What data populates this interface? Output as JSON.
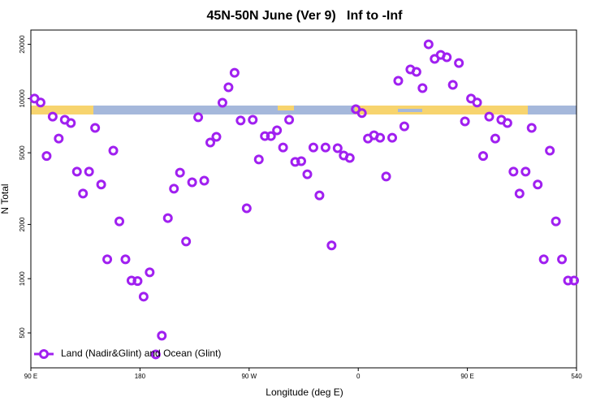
{
  "chart_data": {
    "type": "scatter",
    "title": "45N-50N June (Ver 9)   Inf to -Inf",
    "xlabel": "Longitude (deg E)",
    "ylabel": "N Total",
    "x": [
      93,
      98,
      103,
      108,
      113,
      118,
      123,
      128,
      133,
      138,
      143,
      148,
      153,
      158,
      163,
      168,
      173,
      178,
      183,
      188,
      193,
      198,
      203,
      208,
      213,
      218,
      223,
      228,
      233,
      238,
      243,
      248,
      253,
      258,
      263,
      268,
      273,
      278,
      283,
      288,
      293,
      298,
      303,
      308,
      313,
      318,
      323,
      328,
      333,
      338,
      343,
      348,
      353,
      358,
      363,
      368,
      373,
      378,
      383,
      388,
      393,
      398,
      403,
      408,
      413,
      418,
      423,
      428,
      433,
      438,
      443,
      448,
      453,
      458,
      463,
      468,
      473,
      478,
      483,
      488,
      493,
      498,
      503,
      508,
      513,
      518,
      523,
      528,
      533,
      538
    ],
    "series": [
      {
        "name": "Land (Nadir&Glint) and Ocean (Glint)",
        "color": "#a020f0",
        "values": [
          10000,
          9500,
          4800,
          7940,
          6000,
          7620,
          7310,
          3930,
          2970,
          3930,
          6870,
          3330,
          1280,
          5140,
          2080,
          1280,
          977,
          970,
          795,
          1085,
          380,
          483,
          2170,
          3160,
          3880,
          1610,
          3430,
          7870,
          3500,
          5700,
          6130,
          9480,
          11540,
          13900,
          7550,
          2460,
          7620,
          4590,
          6190,
          6190,
          6660,
          5350,
          7620,
          4450,
          4490,
          3800,
          5350,
          2900,
          5350,
          1530,
          5300,
          4830,
          4680,
          8730,
          8300,
          6000,
          6250,
          6060,
          3690,
          6060,
          12540,
          7010,
          14500,
          14060,
          11430,
          20000,
          16600,
          17470,
          16950,
          11910,
          15740,
          7470,
          10000,
          9500,
          4800,
          7940,
          6000,
          7620,
          7310,
          3930,
          2970,
          3930,
          6870,
          3330,
          1280,
          5140,
          2080,
          1280,
          977,
          977
        ]
      }
    ],
    "xlim": [
      90,
      540
    ],
    "xticks": [
      {
        "value": 90,
        "label": "90 E"
      },
      180,
      {
        "value": 270,
        "label": "90 W"
      },
      {
        "value": 360,
        "label": "0"
      },
      {
        "value": 450,
        "label": "90 E"
      },
      540
    ],
    "ylim": [
      320,
      24000
    ],
    "yticks": [
      500,
      1000,
      2000,
      5000,
      10000,
      20000
    ],
    "ylog": true,
    "legend": "bottom-left"
  }
}
